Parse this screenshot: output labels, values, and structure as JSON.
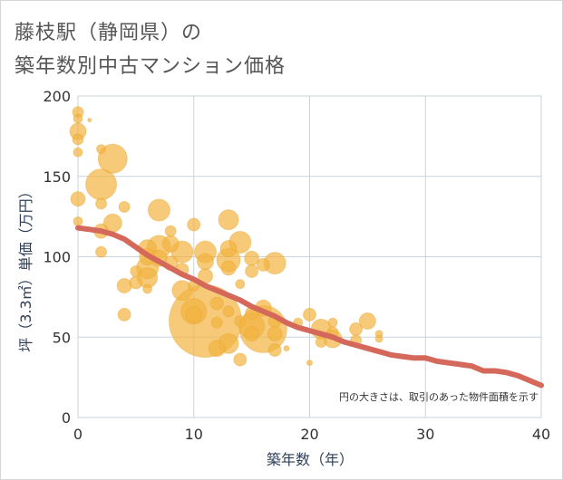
{
  "title_line1": "藤枝駅（静岡県）の",
  "title_line2": "築年数別中古マンション価格",
  "chart_data": {
    "type": "scatter",
    "title": "藤枝駅（静岡県）の築年数別中古マンション価格",
    "xlabel": "築年数（年）",
    "ylabel": "坪（3.3㎡）単価（万円）",
    "xlim": [
      0,
      40
    ],
    "ylim": [
      0,
      200
    ],
    "xticks": [
      "0",
      "10",
      "20",
      "30",
      "40"
    ],
    "yticks": [
      "0",
      "50",
      "100",
      "150",
      "200"
    ],
    "grid": true,
    "annotation": "円の大きさは、取引のあった物件面積を示す",
    "colors": {
      "bubble": "#f2b440",
      "trend": "#d4685a",
      "grid": "#c8d3de",
      "plot_bg": "#ffffff"
    },
    "points": [
      {
        "x": 0,
        "y": 190,
        "size": 6
      },
      {
        "x": 0,
        "y": 186,
        "size": 5
      },
      {
        "x": 0,
        "y": 178,
        "size": 9
      },
      {
        "x": 0,
        "y": 173,
        "size": 6
      },
      {
        "x": 0,
        "y": 165,
        "size": 5
      },
      {
        "x": 0,
        "y": 136,
        "size": 8
      },
      {
        "x": 0,
        "y": 122,
        "size": 5
      },
      {
        "x": 1,
        "y": 185,
        "size": 2
      },
      {
        "x": 2,
        "y": 167,
        "size": 5
      },
      {
        "x": 2,
        "y": 145,
        "size": 17
      },
      {
        "x": 2,
        "y": 133,
        "size": 6
      },
      {
        "x": 2,
        "y": 116,
        "size": 8
      },
      {
        "x": 2,
        "y": 103,
        "size": 6
      },
      {
        "x": 3,
        "y": 161,
        "size": 16
      },
      {
        "x": 3,
        "y": 121,
        "size": 10
      },
      {
        "x": 4,
        "y": 131,
        "size": 6
      },
      {
        "x": 4,
        "y": 82,
        "size": 8
      },
      {
        "x": 4,
        "y": 64,
        "size": 7
      },
      {
        "x": 5,
        "y": 91,
        "size": 6
      },
      {
        "x": 5,
        "y": 84,
        "size": 7
      },
      {
        "x": 6,
        "y": 105,
        "size": 10
      },
      {
        "x": 6,
        "y": 100,
        "size": 9
      },
      {
        "x": 6,
        "y": 93,
        "size": 12
      },
      {
        "x": 6,
        "y": 87,
        "size": 11
      },
      {
        "x": 6,
        "y": 80,
        "size": 5
      },
      {
        "x": 7,
        "y": 129,
        "size": 12
      },
      {
        "x": 7,
        "y": 106,
        "size": 13
      },
      {
        "x": 7,
        "y": 99,
        "size": 9
      },
      {
        "x": 8,
        "y": 116,
        "size": 6
      },
      {
        "x": 8,
        "y": 108,
        "size": 9
      },
      {
        "x": 8,
        "y": 96,
        "size": 8
      },
      {
        "x": 9,
        "y": 103,
        "size": 12
      },
      {
        "x": 9,
        "y": 92,
        "size": 7
      },
      {
        "x": 9,
        "y": 79,
        "size": 11
      },
      {
        "x": 10,
        "y": 120,
        "size": 7
      },
      {
        "x": 10,
        "y": 82,
        "size": 6
      },
      {
        "x": 10,
        "y": 66,
        "size": 14
      },
      {
        "x": 10,
        "y": 64,
        "size": 9
      },
      {
        "x": 11,
        "y": 103,
        "size": 12
      },
      {
        "x": 11,
        "y": 97,
        "size": 9
      },
      {
        "x": 11,
        "y": 88,
        "size": 8
      },
      {
        "x": 11,
        "y": 60,
        "size": 40
      },
      {
        "x": 12,
        "y": 71,
        "size": 7
      },
      {
        "x": 12,
        "y": 59,
        "size": 6
      },
      {
        "x": 12,
        "y": 43,
        "size": 9
      },
      {
        "x": 13,
        "y": 123,
        "size": 11
      },
      {
        "x": 13,
        "y": 105,
        "size": 9
      },
      {
        "x": 13,
        "y": 98,
        "size": 13
      },
      {
        "x": 13,
        "y": 93,
        "size": 8
      },
      {
        "x": 13,
        "y": 66,
        "size": 6
      },
      {
        "x": 13,
        "y": 46,
        "size": 11
      },
      {
        "x": 14,
        "y": 109,
        "size": 12
      },
      {
        "x": 14,
        "y": 83,
        "size": 5
      },
      {
        "x": 14,
        "y": 60,
        "size": 6
      },
      {
        "x": 14,
        "y": 36,
        "size": 7
      },
      {
        "x": 15,
        "y": 99,
        "size": 8
      },
      {
        "x": 15,
        "y": 91,
        "size": 7
      },
      {
        "x": 15,
        "y": 65,
        "size": 7
      },
      {
        "x": 15,
        "y": 57,
        "size": 14
      },
      {
        "x": 15,
        "y": 52,
        "size": 8
      },
      {
        "x": 16,
        "y": 95,
        "size": 7
      },
      {
        "x": 16,
        "y": 68,
        "size": 9
      },
      {
        "x": 16,
        "y": 55,
        "size": 26
      },
      {
        "x": 17,
        "y": 96,
        "size": 12
      },
      {
        "x": 17,
        "y": 60,
        "size": 7
      },
      {
        "x": 17,
        "y": 52,
        "size": 8
      },
      {
        "x": 17,
        "y": 42,
        "size": 7
      },
      {
        "x": 18,
        "y": 43,
        "size": 3
      },
      {
        "x": 19,
        "y": 59,
        "size": 5
      },
      {
        "x": 20,
        "y": 64,
        "size": 7
      },
      {
        "x": 20,
        "y": 34,
        "size": 3
      },
      {
        "x": 21,
        "y": 55,
        "size": 11
      },
      {
        "x": 21,
        "y": 47,
        "size": 6
      },
      {
        "x": 22,
        "y": 59,
        "size": 5
      },
      {
        "x": 22,
        "y": 53,
        "size": 6
      },
      {
        "x": 22,
        "y": 49,
        "size": 10
      },
      {
        "x": 24,
        "y": 55,
        "size": 7
      },
      {
        "x": 24,
        "y": 48,
        "size": 6
      },
      {
        "x": 25,
        "y": 60,
        "size": 9
      },
      {
        "x": 26,
        "y": 52,
        "size": 4
      },
      {
        "x": 26,
        "y": 49,
        "size": 4
      }
    ],
    "trend": {
      "x": [
        0,
        1,
        2,
        3,
        4,
        5,
        6,
        7,
        8,
        9,
        10,
        11,
        12,
        13,
        14,
        15,
        16,
        17,
        18,
        19,
        20,
        21,
        22,
        23,
        24,
        25,
        26,
        27,
        28,
        29,
        30,
        31,
        32,
        33,
        34,
        35,
        36,
        37,
        38,
        39,
        40
      ],
      "y": [
        118,
        117,
        116,
        114,
        111,
        106,
        101,
        97,
        93,
        89,
        86,
        82,
        79,
        76,
        73,
        69,
        66,
        63,
        59,
        56,
        54,
        52,
        50,
        47,
        45,
        43,
        41,
        39,
        38,
        37,
        37,
        35,
        34,
        33,
        32,
        29,
        29,
        28,
        26,
        23,
        20
      ]
    }
  }
}
